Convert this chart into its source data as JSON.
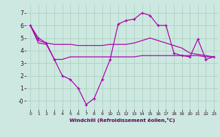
{
  "bg_color": "#cce8e0",
  "grid_color": "#aaccbb",
  "line_color": "#aa00aa",
  "xlabel": "Windchill (Refroidissement éolien,°C)",
  "xlim": [
    -0.5,
    23.5
  ],
  "ylim": [
    -0.7,
    7.7
  ],
  "xtick_labels": [
    "0",
    "1",
    "2",
    "3",
    "4",
    "5",
    "6",
    "7",
    "8",
    "9",
    "10",
    "11",
    "12",
    "13",
    "14",
    "15",
    "16",
    "17",
    "18",
    "19",
    "20",
    "21",
    "22",
    "23"
  ],
  "ytick_vals": [
    0,
    1,
    2,
    3,
    4,
    5,
    6,
    7
  ],
  "ytick_labels": [
    "-0",
    "1",
    "2",
    "3",
    "4",
    "5",
    "6",
    "7"
  ],
  "line_zigzag_x": [
    0,
    1,
    2,
    3,
    4,
    5,
    6,
    7,
    8,
    9,
    10,
    11,
    12,
    13,
    14,
    15,
    16,
    17,
    18,
    19,
    20,
    21,
    22,
    23
  ],
  "line_zigzag_y": [
    6.0,
    5.0,
    4.6,
    3.3,
    2.0,
    1.7,
    1.0,
    -0.3,
    0.2,
    1.7,
    3.3,
    6.1,
    6.4,
    6.5,
    7.0,
    6.8,
    6.0,
    6.0,
    3.8,
    3.6,
    3.5,
    4.9,
    3.3,
    3.5
  ],
  "line_upper_x": [
    0,
    1,
    2,
    3,
    4,
    5,
    6,
    7,
    8,
    9,
    10,
    11,
    12,
    13,
    14,
    15,
    16,
    17,
    18,
    19,
    20,
    21,
    22,
    23
  ],
  "line_upper_y": [
    6.0,
    4.8,
    4.6,
    4.5,
    4.5,
    4.5,
    4.4,
    4.4,
    4.4,
    4.4,
    4.5,
    4.5,
    4.5,
    4.6,
    4.8,
    5.0,
    4.8,
    4.6,
    4.4,
    4.2,
    3.8,
    3.7,
    3.6,
    3.5
  ],
  "line_lower_x": [
    0,
    1,
    2,
    3,
    4,
    5,
    6,
    7,
    8,
    9,
    10,
    11,
    12,
    13,
    14,
    15,
    16,
    17,
    18,
    19,
    20,
    21,
    22,
    23
  ],
  "line_lower_y": [
    6.0,
    4.6,
    4.5,
    3.3,
    3.3,
    3.5,
    3.5,
    3.5,
    3.5,
    3.5,
    3.5,
    3.5,
    3.5,
    3.5,
    3.6,
    3.6,
    3.6,
    3.6,
    3.6,
    3.6,
    3.6,
    3.6,
    3.5,
    3.5
  ]
}
